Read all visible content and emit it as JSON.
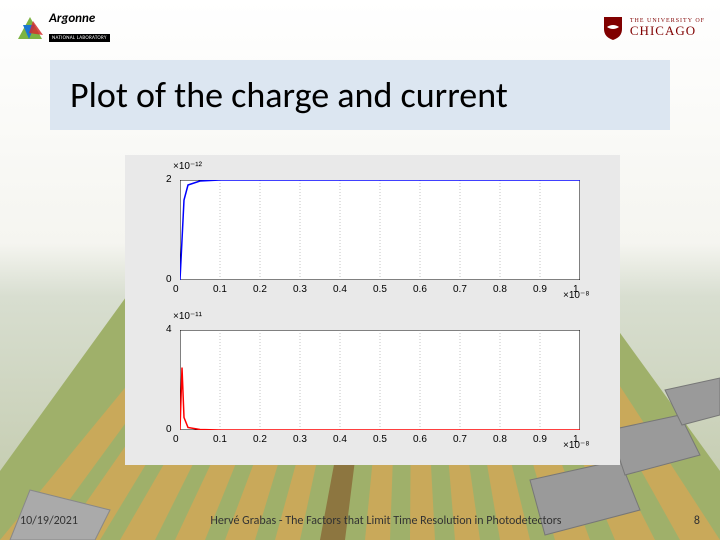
{
  "header": {
    "argonne_name": "Argonne",
    "argonne_sub": "NATIONAL LABORATORY",
    "chicago_line1": "THE UNIVERSITY OF",
    "chicago_line2": "CHICAGO"
  },
  "title": "Plot of the charge and current",
  "title_bar_color": "#dce6f1",
  "chart": {
    "background_color": "#e9e9e9",
    "plot_bg": "#ffffff",
    "grid_color": "#888888",
    "tick_color": "#000000",
    "tick_fontsize": 10,
    "subplot1": {
      "line_color": "#0000ff",
      "exponent_label": "×10⁻¹²",
      "x_exponent_label": "×10⁻⁸",
      "xlim": [
        0,
        1
      ],
      "ylim": [
        0,
        2
      ],
      "yticks": [
        0,
        2
      ],
      "xticks": [
        0,
        0.1,
        0.2,
        0.3,
        0.4,
        0.5,
        0.6,
        0.7,
        0.8,
        0.9,
        1
      ],
      "data": {
        "x": [
          0,
          0.005,
          0.01,
          0.02,
          0.05,
          0.1,
          0.2,
          0.3,
          0.4,
          0.5,
          0.6,
          0.7,
          0.8,
          0.9,
          1.0
        ],
        "y": [
          0,
          0.8,
          1.6,
          1.9,
          1.98,
          2.0,
          2.0,
          2.0,
          2.0,
          2.0,
          2.0,
          2.0,
          2.0,
          2.0,
          2.0
        ]
      }
    },
    "subplot2": {
      "line_color": "#ff0000",
      "exponent_label": "×10⁻¹¹",
      "x_exponent_label": "×10⁻⁸",
      "xlim": [
        0,
        1
      ],
      "ylim": [
        0,
        4
      ],
      "yticks": [
        0,
        4
      ],
      "xticks": [
        0,
        0.1,
        0.2,
        0.3,
        0.4,
        0.5,
        0.6,
        0.7,
        0.8,
        0.9,
        1
      ],
      "data": {
        "x": [
          0,
          0.005,
          0.01,
          0.02,
          0.05,
          0.1,
          0.2,
          0.3,
          1.0
        ],
        "y": [
          0,
          2.5,
          0.5,
          0.1,
          0.02,
          0,
          0,
          0,
          0
        ]
      }
    }
  },
  "footer": {
    "date": "10/19/2021",
    "center": "Hervé Grabas - The Factors that Limit Time Resolution in Photodetectors",
    "page": "8"
  }
}
